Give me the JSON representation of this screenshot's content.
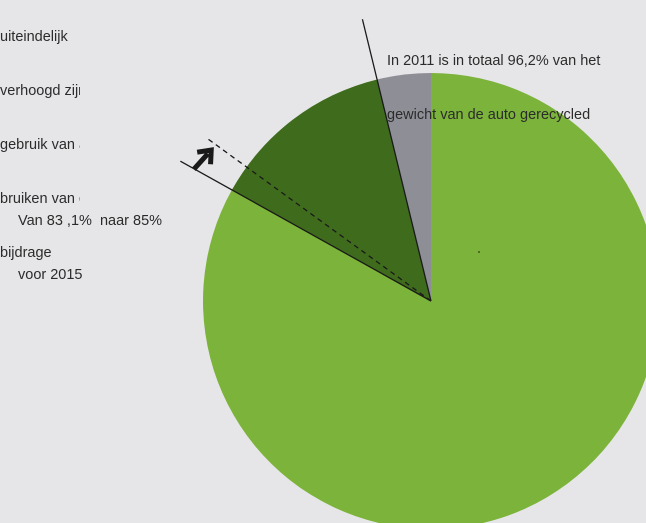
{
  "side_note": {
    "lines": [
      "uiteindelijk",
      "verhoogd zijn",
      "gebruik van alherge-",
      "bruiken van de",
      "bijdrage"
    ]
  },
  "annotations": {
    "total": [
      "In 2011 is in totaal 96,2% van het",
      "gewicht van de auto gerecycled"
    ],
    "target": [
      "Van 83 ,1%  naar 85%",
      "voor 2015"
    ]
  },
  "chart_data": {
    "type": "pie",
    "title": "",
    "start_angle_deg": 0,
    "direction": "clockwise",
    "slices": [
      {
        "label": "",
        "value": 83.1,
        "color": "#7cb33a"
      },
      {
        "label": "",
        "value": 13.1,
        "color": "#3f6b1c"
      },
      {
        "label": "",
        "value": 3.8,
        "color": "#8e8f96"
      }
    ],
    "target_value": 85.0,
    "total_recycled": 96.2
  }
}
